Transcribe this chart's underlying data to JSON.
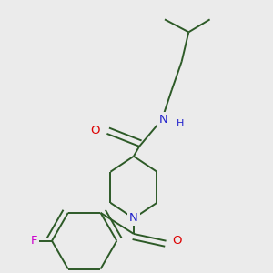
{
  "background_color": "#ebebeb",
  "bond_color": "#2d5a27",
  "atom_colors": {
    "O": "#dd0000",
    "N": "#2020cc",
    "F": "#cc00cc",
    "H": "#2020cc"
  },
  "line_width": 1.4,
  "font_size": 9.5,
  "figsize": [
    3.0,
    3.0
  ],
  "dpi": 100
}
